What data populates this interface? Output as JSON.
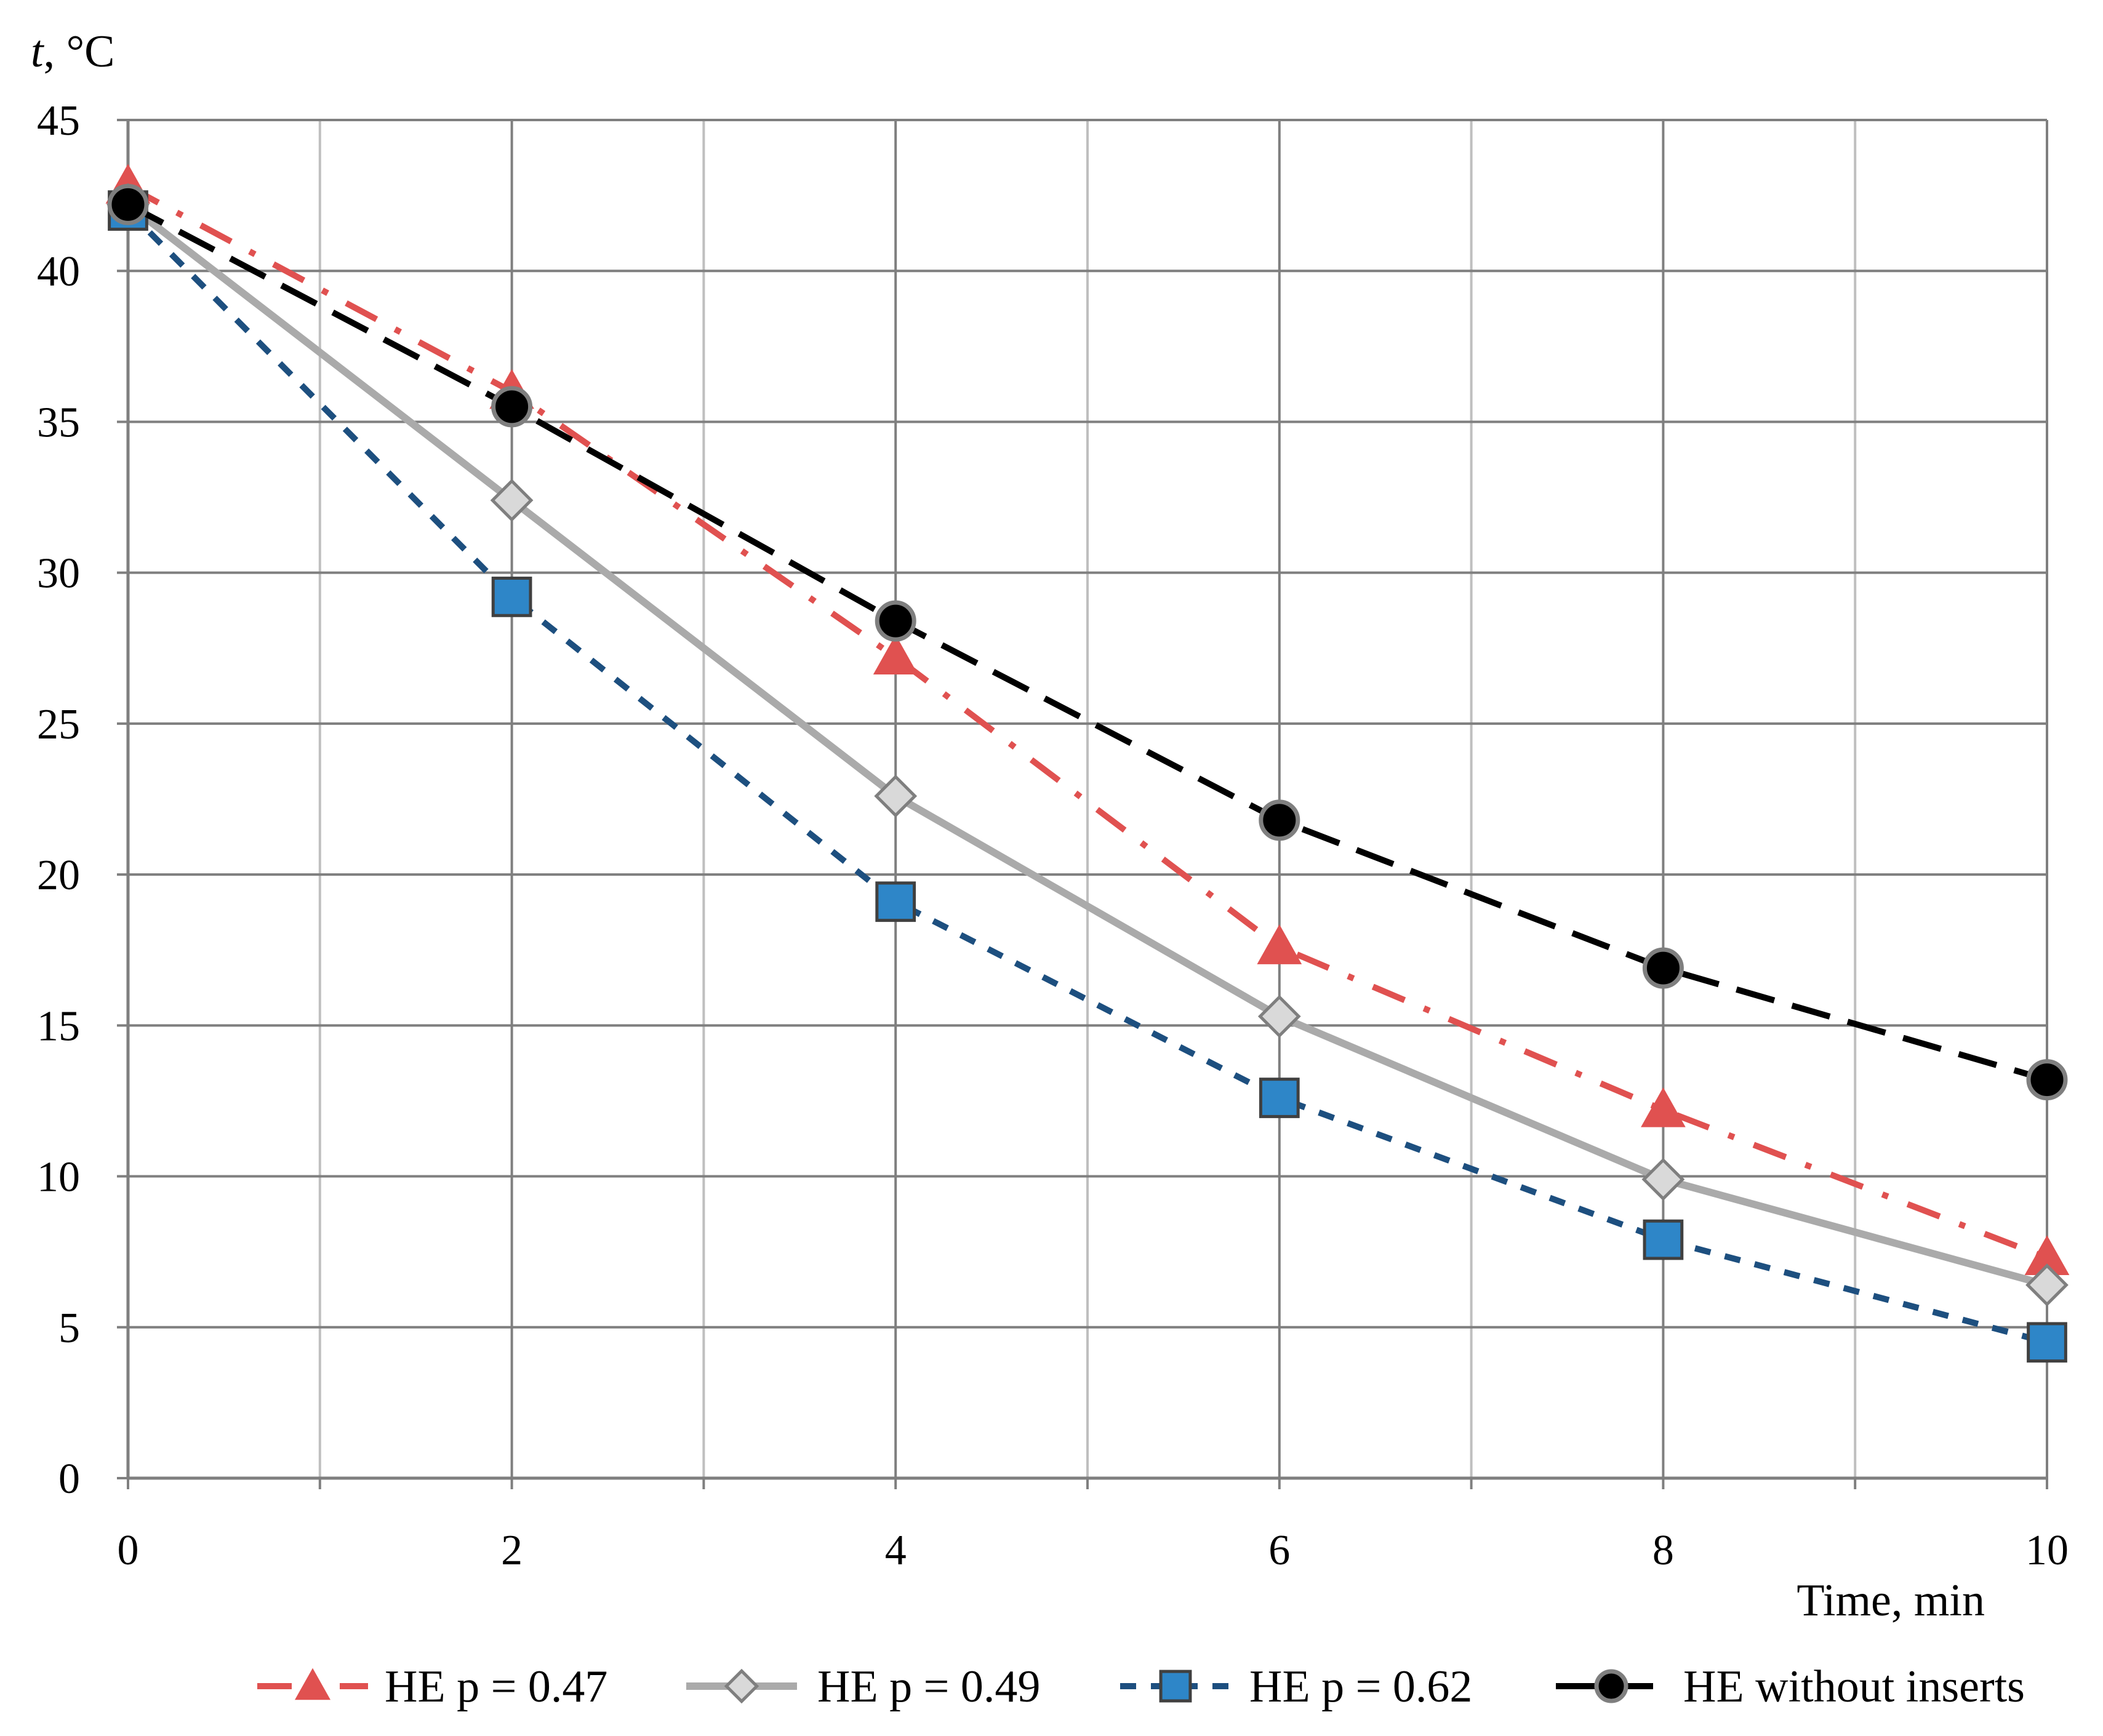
{
  "chart_data": {
    "type": "line",
    "ylabel_var": "t",
    "ylabel_unit": ", °C",
    "xlabel": "Time, min",
    "xlim": [
      0,
      10
    ],
    "ylim": [
      0,
      45
    ],
    "x_ticks": [
      "0",
      "2",
      "4",
      "6",
      "8",
      "10"
    ],
    "y_ticks": [
      "0",
      "5",
      "10",
      "15",
      "20",
      "25",
      "30",
      "35",
      "40",
      "45"
    ],
    "grid": true,
    "legend_position": "bottom",
    "x": [
      0,
      2,
      4,
      6,
      8,
      10
    ],
    "series": [
      {
        "name": "HE p = 0.47",
        "values": [
          42.8,
          36.0,
          27.2,
          17.6,
          12.2,
          7.3
        ],
        "color": "#e05150",
        "dash": "dashdot",
        "marker": "triangle"
      },
      {
        "name": "HE p = 0.49",
        "values": [
          42.2,
          32.4,
          22.6,
          15.3,
          9.9,
          6.4
        ],
        "color": "#aaaaaa",
        "dash": "solid",
        "marker": "diamond"
      },
      {
        "name": "HE p = 0.62",
        "values": [
          42.0,
          29.2,
          19.1,
          12.6,
          7.9,
          4.5
        ],
        "color": "#1d4f7f",
        "marker_fill": "#2e86c8",
        "dash": "dash",
        "marker": "square"
      },
      {
        "name": "HE without inserts",
        "values": [
          42.2,
          35.5,
          28.4,
          21.8,
          16.9,
          13.2
        ],
        "color": "#000000",
        "dash": "longdash",
        "marker": "circle"
      }
    ]
  }
}
